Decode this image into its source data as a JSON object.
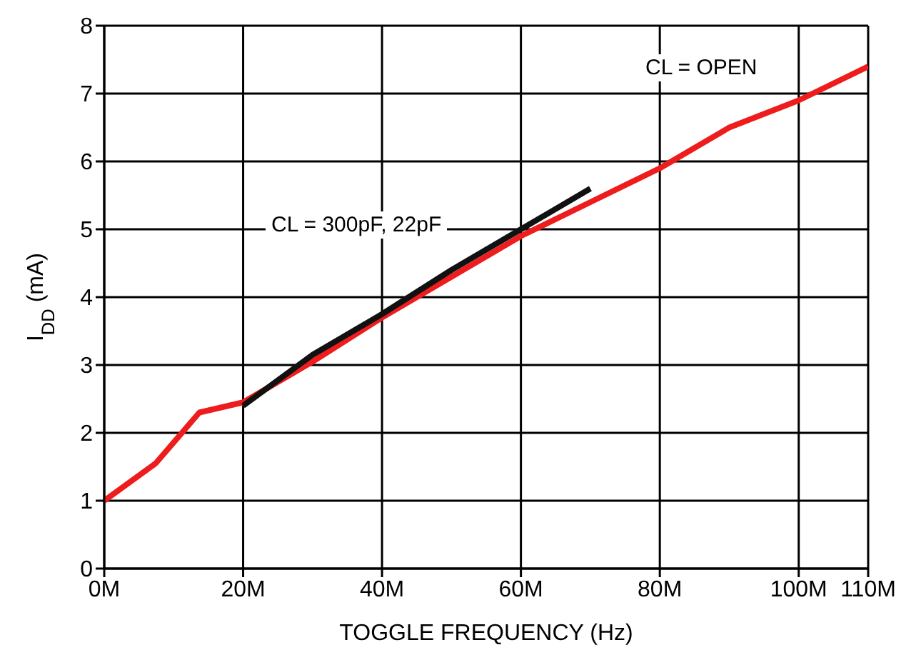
{
  "chart_data": {
    "type": "line",
    "xlabel": "TOGGLE FREQUENCY (Hz)",
    "ylabel": "I$_{DD}$ (mA)",
    "xlim": [
      0,
      110
    ],
    "xticks": [
      {
        "value": 0,
        "label": "0M"
      },
      {
        "value": 20,
        "label": "20M"
      },
      {
        "value": 40,
        "label": "40M"
      },
      {
        "value": 60,
        "label": "60M"
      },
      {
        "value": 80,
        "label": "80M"
      },
      {
        "value": 100,
        "label": "100M"
      },
      {
        "value": 110,
        "label": "110M"
      }
    ],
    "ylim": [
      0,
      8
    ],
    "yticks": [
      0,
      1,
      2,
      3,
      4,
      5,
      6,
      7,
      8
    ],
    "grid": true,
    "marker": "none",
    "line_style": "solid",
    "series": [
      {
        "color": "#ee1c1c",
        "x": [
          0,
          7.4,
          13.7,
          20,
          30,
          40,
          50,
          60,
          70,
          80,
          90,
          100,
          110
        ],
        "values": [
          1.0,
          1.55,
          2.3,
          2.45,
          3.05,
          3.7,
          4.3,
          4.9,
          5.4,
          5.9,
          6.5,
          6.9,
          7.4
        ]
      },
      {
        "color": "#111111",
        "x": [
          20,
          30,
          40,
          50,
          60,
          70
        ],
        "values": [
          2.4,
          3.15,
          3.75,
          4.4,
          5.0,
          5.6
        ]
      }
    ],
    "annotations": [
      "CL = 300pF, 22pF",
      "CL = OPEN"
    ]
  }
}
